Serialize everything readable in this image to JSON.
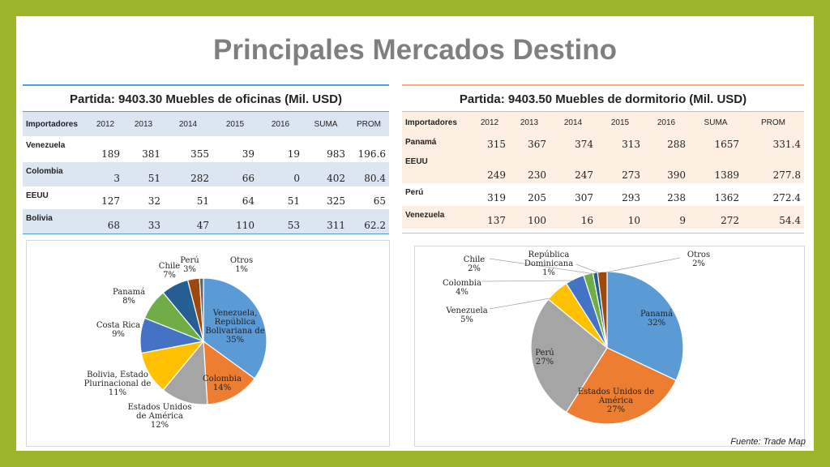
{
  "title": "Principales Mercados Destino",
  "source": "Fuente: Trade Map",
  "left_table": {
    "title": "Partida: 9403.30 Muebles de oficinas (Mil. USD)",
    "headers": [
      "Importadores",
      "2012",
      "2013",
      "2014",
      "2015",
      "2016",
      "SUMA",
      "PROM"
    ],
    "rows": [
      [
        "Venezuela",
        "189",
        "381",
        "355",
        "39",
        "19",
        "983",
        "196.6"
      ],
      [
        "Colombia",
        "3",
        "51",
        "282",
        "66",
        "0",
        "402",
        "80.4"
      ],
      [
        "EEUU",
        "127",
        "32",
        "51",
        "64",
        "51",
        "325",
        "65"
      ],
      [
        "Bolivia",
        "68",
        "33",
        "47",
        "110",
        "53",
        "311",
        "62.2"
      ]
    ],
    "accent": "#5b9bd5",
    "stripe": "#dce6f1"
  },
  "right_table": {
    "title": "Partida: 9403.50 Muebles de dormitorio (Mil. USD)",
    "headers": [
      "Importadores",
      "2012",
      "2013",
      "2014",
      "2015",
      "2016",
      "SUMA",
      "PROM"
    ],
    "rows": [
      [
        "Panamá",
        "315",
        "367",
        "374",
        "313",
        "288",
        "1657",
        "331.4"
      ],
      [
        "EEUU",
        "249",
        "230",
        "247",
        "273",
        "390",
        "1389",
        "277.8"
      ],
      [
        "Perú",
        "319",
        "205",
        "307",
        "293",
        "238",
        "1362",
        "272.4"
      ],
      [
        "Venezuela",
        "137",
        "100",
        "16",
        "10",
        "9",
        "272",
        "54.4"
      ]
    ],
    "accent": "#f4b183",
    "stripe": "#fdf0e3"
  },
  "chart_data": [
    {
      "type": "pie",
      "slices": [
        {
          "label": "Venezuela, República Bolivariana de",
          "value": 35,
          "pct": "35%",
          "color": "#5b9bd5"
        },
        {
          "label": "Colombia",
          "value": 14,
          "pct": "14%",
          "color": "#ed7d31"
        },
        {
          "label": "Estados Unidos de América",
          "value": 12,
          "pct": "12%",
          "color": "#a5a5a5"
        },
        {
          "label": "Bolivia, Estado Plurinacional de",
          "value": 11,
          "pct": "11%",
          "color": "#ffc000"
        },
        {
          "label": "Costa Rica",
          "value": 9,
          "pct": "9%",
          "color": "#4472c4"
        },
        {
          "label": "Panamá",
          "value": 8,
          "pct": "8%",
          "color": "#70ad47"
        },
        {
          "label": "Chile",
          "value": 7,
          "pct": "7%",
          "color": "#255e91"
        },
        {
          "label": "Perú",
          "value": 3,
          "pct": "3%",
          "color": "#9e480e"
        },
        {
          "label": "Otros",
          "value": 1,
          "pct": "1%",
          "color": "#636363"
        }
      ]
    },
    {
      "type": "pie",
      "slices": [
        {
          "label": "Panamá",
          "value": 32,
          "pct": "32%",
          "color": "#5b9bd5"
        },
        {
          "label": "Estados Unidos de América",
          "value": 27,
          "pct": "27%",
          "color": "#ed7d31"
        },
        {
          "label": "Perú",
          "value": 27,
          "pct": "27%",
          "color": "#a5a5a5"
        },
        {
          "label": "Venezuela",
          "value": 5,
          "pct": "5%",
          "color": "#ffc000"
        },
        {
          "label": "Colombia",
          "value": 4,
          "pct": "4%",
          "color": "#4472c4"
        },
        {
          "label": "Chile",
          "value": 2,
          "pct": "2%",
          "color": "#70ad47"
        },
        {
          "label": "República Dominicana",
          "value": 1,
          "pct": "1%",
          "color": "#255e91"
        },
        {
          "label": "Otros",
          "value": 2,
          "pct": "2%",
          "color": "#9e480e"
        }
      ]
    }
  ]
}
